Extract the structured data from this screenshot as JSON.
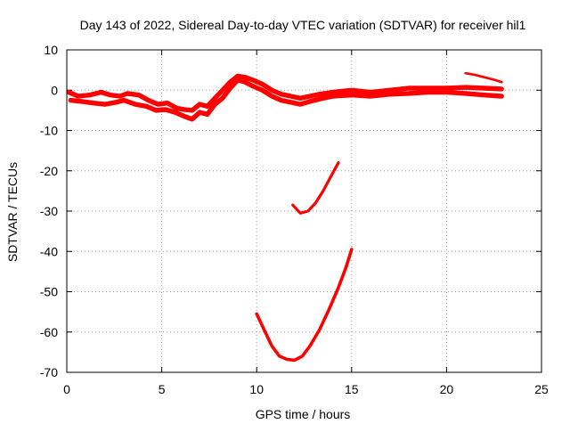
{
  "chart_data": {
    "type": "line",
    "title": "Day 143 of 2022, Sidereal Day-to-day VTEC variation (SDTVAR) for receiver hil1",
    "xlabel": "GPS time / hours",
    "ylabel": "SDTVAR / TECUs",
    "xlim": [
      0,
      25
    ],
    "ylim": [
      -70,
      10
    ],
    "xticks": [
      0,
      5,
      10,
      15,
      20,
      25
    ],
    "yticks": [
      10,
      0,
      -10,
      -20,
      -30,
      -40,
      -50,
      -60,
      -70
    ],
    "grid": true,
    "legend": "none",
    "series_color": "#ff0000",
    "series": [
      {
        "name": "main-upper",
        "thickness": 1.2,
        "x": [
          0.1,
          0.6,
          1.2,
          1.8,
          2.3,
          2.8,
          3.2,
          3.8,
          4.3,
          4.8,
          5.3,
          5.8,
          6.2,
          6.6,
          7.0,
          7.4,
          7.8,
          8.2,
          8.6,
          9.0,
          9.4,
          9.8,
          10.3,
          10.8,
          11.3,
          11.8,
          12.3,
          12.8,
          13.3,
          14.0,
          15.0,
          16.0,
          17.0,
          18.0,
          19.0,
          20.0,
          21.0,
          22.0,
          22.9
        ],
        "y": [
          -0.5,
          -1.5,
          -1.2,
          -0.5,
          -1.2,
          -1.5,
          -0.8,
          -1.2,
          -2.5,
          -3.5,
          -3.2,
          -4.5,
          -4.8,
          -5.0,
          -3.5,
          -4.0,
          -2.0,
          0.0,
          2.0,
          3.5,
          3.2,
          2.5,
          1.5,
          0.0,
          -1.0,
          -1.5,
          -2.0,
          -1.5,
          -1.0,
          -0.5,
          0.0,
          -0.5,
          0.0,
          0.5,
          0.5,
          0.5,
          0.7,
          0.5,
          0.3
        ]
      },
      {
        "name": "main-lower",
        "thickness": 1.2,
        "x": [
          0.2,
          0.8,
          1.4,
          2.0,
          2.6,
          3.0,
          3.6,
          4.2,
          4.7,
          5.2,
          5.7,
          6.2,
          6.6,
          7.0,
          7.4,
          7.8,
          8.2,
          8.6,
          9.0,
          9.4,
          9.8,
          10.3,
          10.8,
          11.3,
          11.8,
          12.3,
          12.8,
          13.3,
          14.0,
          15.0,
          16.0,
          17.0,
          18.0,
          19.0,
          20.0,
          21.0,
          22.0,
          22.9
        ],
        "y": [
          -2.5,
          -2.8,
          -3.2,
          -3.5,
          -3.0,
          -2.5,
          -3.5,
          -4.0,
          -5.0,
          -4.8,
          -5.5,
          -6.5,
          -7.2,
          -5.5,
          -6.0,
          -3.5,
          -2.0,
          0.5,
          2.5,
          2.0,
          1.0,
          0.0,
          -1.5,
          -2.5,
          -3.0,
          -3.5,
          -2.8,
          -2.2,
          -1.5,
          -1.2,
          -1.5,
          -1.0,
          -0.8,
          -0.5,
          -0.5,
          -0.8,
          -1.2,
          -1.5
        ]
      },
      {
        "name": "late-segment",
        "thickness": 0.6,
        "x": [
          21.0,
          21.5,
          22.0,
          22.5,
          22.9
        ],
        "y": [
          4.2,
          3.8,
          3.2,
          2.6,
          2.0
        ]
      },
      {
        "name": "mid-arc",
        "thickness": 0.7,
        "x": [
          11.9,
          12.3,
          12.7,
          13.1,
          13.5,
          13.9,
          14.3
        ],
        "y": [
          -28.5,
          -30.5,
          -30.0,
          -28.0,
          -25.0,
          -21.5,
          -18.0
        ]
      },
      {
        "name": "deep-arc",
        "thickness": 0.8,
        "x": [
          10.0,
          10.4,
          10.8,
          11.2,
          11.6,
          12.0,
          12.4,
          12.8,
          13.3,
          13.8,
          14.3,
          14.7,
          15.0
        ],
        "y": [
          -55.5,
          -59.5,
          -63.5,
          -66.0,
          -66.8,
          -67.0,
          -66.0,
          -63.5,
          -59.5,
          -54.5,
          -49.0,
          -44.0,
          -39.5
        ]
      }
    ]
  }
}
